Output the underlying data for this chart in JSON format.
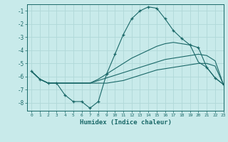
{
  "xlabel": "Humidex (Indice chaleur)",
  "ylabel": "",
  "background_color": "#c8eaea",
  "grid_color": "#b0d8d8",
  "line_color": "#1a6868",
  "xlim": [
    -0.5,
    23
  ],
  "ylim": [
    -8.6,
    -0.5
  ],
  "xticks": [
    0,
    1,
    2,
    3,
    4,
    5,
    6,
    7,
    8,
    9,
    10,
    11,
    12,
    13,
    14,
    15,
    16,
    17,
    18,
    19,
    20,
    21,
    22,
    23
  ],
  "yticks": [
    -8,
    -7,
    -6,
    -5,
    -4,
    -3,
    -2,
    -1
  ],
  "line1_x": [
    0,
    1,
    2,
    3,
    4,
    5,
    6,
    7,
    8,
    9,
    10,
    11,
    12,
    13,
    14,
    15,
    16,
    17,
    18,
    19,
    20,
    21,
    22,
    23
  ],
  "line1_y": [
    -5.6,
    -6.2,
    -6.5,
    -6.5,
    -7.4,
    -7.9,
    -7.9,
    -8.4,
    -7.9,
    -5.8,
    -4.3,
    -2.8,
    -1.6,
    -1.0,
    -0.7,
    -0.8,
    -1.6,
    -2.5,
    -3.1,
    -3.6,
    -3.8,
    -5.3,
    -6.1,
    -6.6
  ],
  "line2_x": [
    0,
    1,
    2,
    3,
    4,
    5,
    6,
    7,
    8,
    9,
    10,
    11,
    12,
    13,
    14,
    15,
    16,
    17,
    18,
    19,
    20,
    21,
    22,
    23
  ],
  "line2_y": [
    -5.6,
    -6.2,
    -6.5,
    -6.5,
    -6.5,
    -6.5,
    -6.5,
    -6.5,
    -6.5,
    -6.5,
    -6.4,
    -6.3,
    -6.1,
    -5.9,
    -5.7,
    -5.5,
    -5.4,
    -5.3,
    -5.2,
    -5.1,
    -5.0,
    -5.0,
    -5.2,
    -6.6
  ],
  "line3_x": [
    0,
    1,
    2,
    3,
    4,
    5,
    6,
    7,
    8,
    9,
    10,
    11,
    12,
    13,
    14,
    15,
    16,
    17,
    18,
    19,
    20,
    21,
    22,
    23
  ],
  "line3_y": [
    -5.6,
    -6.2,
    -6.5,
    -6.5,
    -6.5,
    -6.5,
    -6.5,
    -6.5,
    -6.3,
    -6.1,
    -5.9,
    -5.7,
    -5.5,
    -5.3,
    -5.1,
    -4.9,
    -4.7,
    -4.6,
    -4.5,
    -4.4,
    -4.3,
    -4.4,
    -4.8,
    -6.6
  ],
  "line4_x": [
    0,
    1,
    2,
    3,
    4,
    5,
    6,
    7,
    8,
    9,
    10,
    11,
    12,
    13,
    14,
    15,
    16,
    17,
    18,
    19,
    20,
    21,
    22,
    23
  ],
  "line4_y": [
    -5.6,
    -6.2,
    -6.5,
    -6.5,
    -6.5,
    -6.5,
    -6.5,
    -6.5,
    -6.2,
    -5.8,
    -5.4,
    -5.0,
    -4.6,
    -4.3,
    -4.0,
    -3.7,
    -3.5,
    -3.4,
    -3.5,
    -3.6,
    -4.9,
    -5.3,
    -6.1,
    -6.6
  ]
}
